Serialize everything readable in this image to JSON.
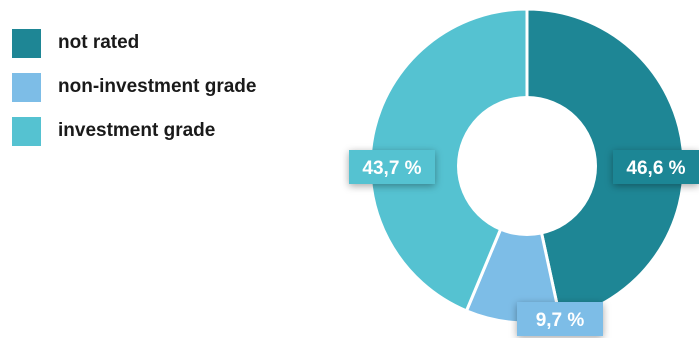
{
  "chart_data": {
    "type": "pie",
    "categories": [
      "not rated",
      "non-investment grade",
      "investment grade"
    ],
    "values": [
      46.6,
      9.7,
      43.7
    ],
    "data_labels": [
      "46,6 %",
      "9,7 %",
      "43,7 %"
    ],
    "colors": [
      "#1e8695",
      "#7dbde7",
      "#55c2d1"
    ],
    "legend_placement": "top-left",
    "donut": true
  }
}
